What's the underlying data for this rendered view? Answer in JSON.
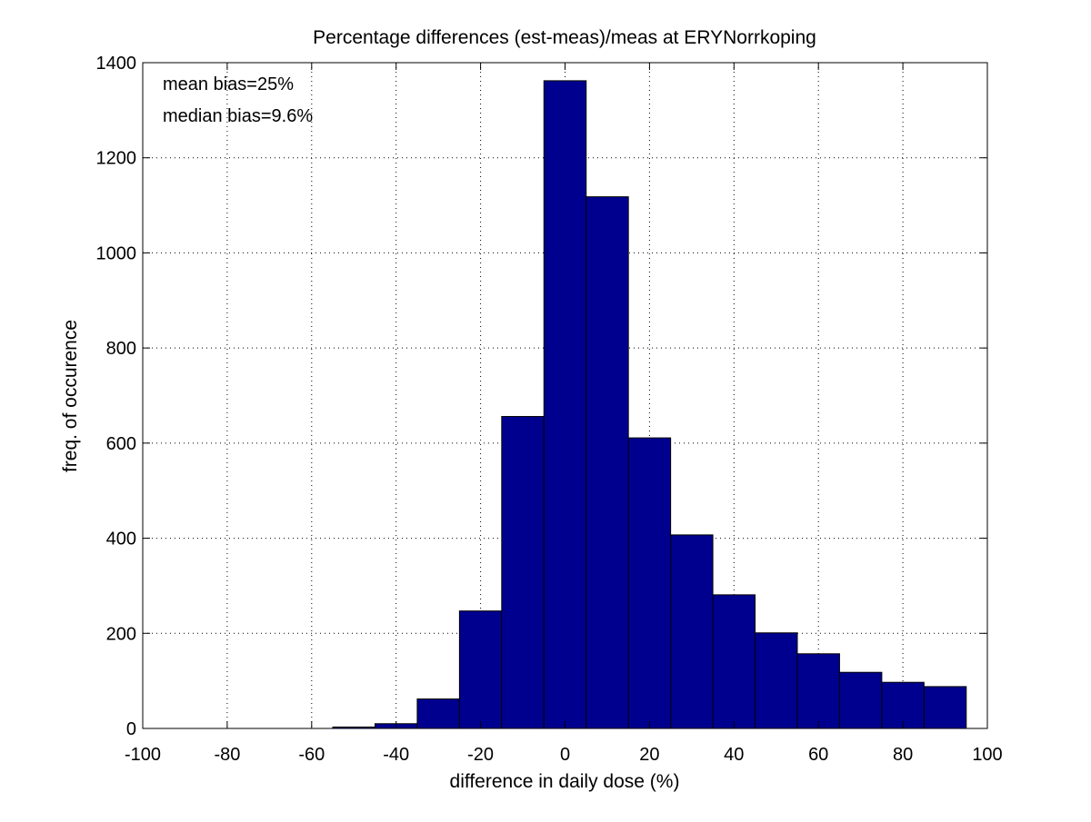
{
  "chart_data": {
    "type": "bar",
    "title": "Percentage differences (est-meas)/meas at ERYNorrkoping",
    "xlabel": "difference in daily dose (%)",
    "ylabel": "freq. of occurence",
    "xlim": [
      -100,
      100
    ],
    "ylim": [
      0,
      1400
    ],
    "xticks": [
      -100,
      -80,
      -60,
      -40,
      -20,
      0,
      20,
      40,
      60,
      80,
      100
    ],
    "yticks": [
      0,
      200,
      400,
      600,
      800,
      1000,
      1200,
      1400
    ],
    "grid": true,
    "bin_width": 10,
    "bar_color": "#00008F",
    "bins": [
      {
        "center": -50,
        "value": 3
      },
      {
        "center": -40,
        "value": 10
      },
      {
        "center": -30,
        "value": 62
      },
      {
        "center": -20,
        "value": 247
      },
      {
        "center": -10,
        "value": 656
      },
      {
        "center": 0,
        "value": 1362
      },
      {
        "center": 10,
        "value": 1118
      },
      {
        "center": 20,
        "value": 611
      },
      {
        "center": 30,
        "value": 407
      },
      {
        "center": 40,
        "value": 281
      },
      {
        "center": 50,
        "value": 201
      },
      {
        "center": 60,
        "value": 157
      },
      {
        "center": 70,
        "value": 118
      },
      {
        "center": 80,
        "value": 97
      },
      {
        "center": 90,
        "value": 88
      }
    ],
    "annotations": [
      "mean bias=25%",
      "median bias=9.6%"
    ]
  }
}
